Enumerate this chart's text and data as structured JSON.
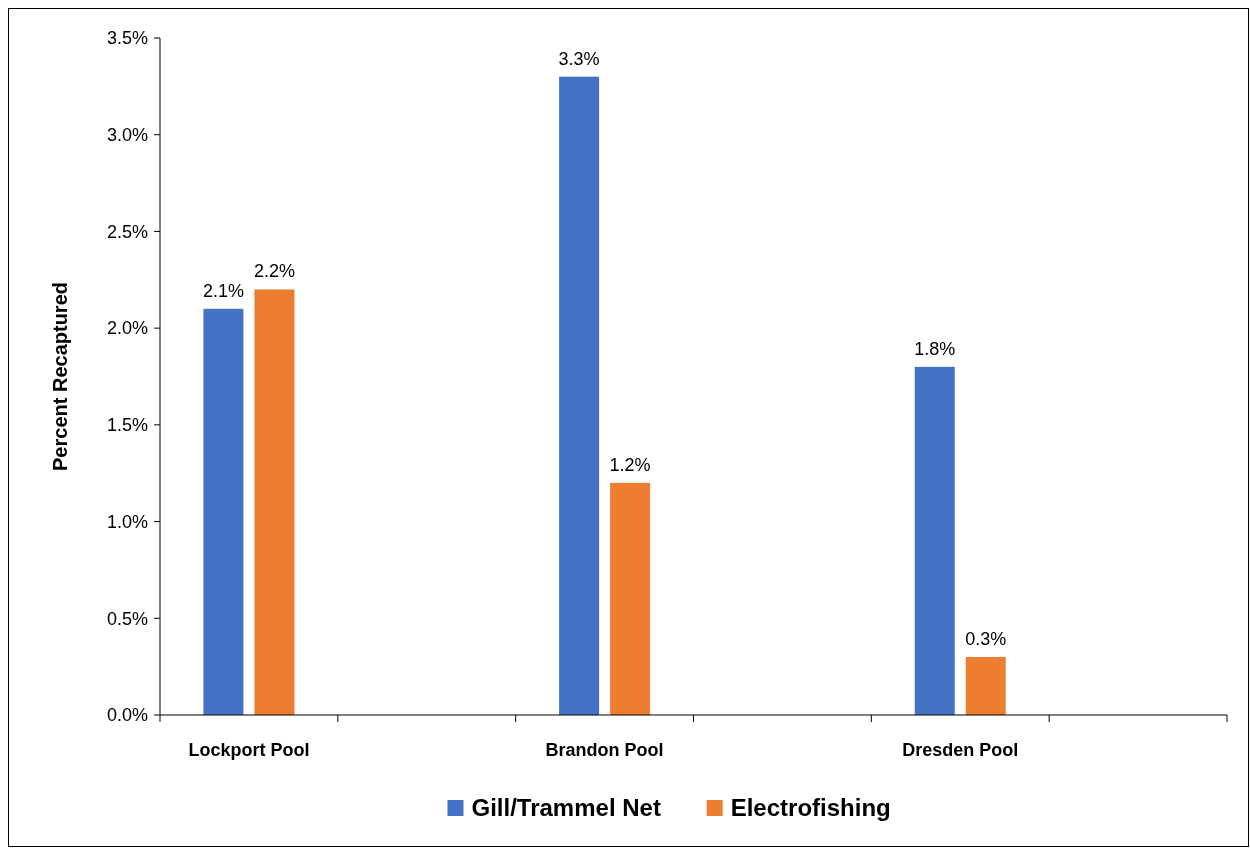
{
  "chart_data": {
    "type": "bar",
    "ylabel": "Percent Recaptured",
    "categories": [
      "Lockport Pool",
      null,
      "Brandon Pool",
      null,
      "Dresden Pool",
      null
    ],
    "series": [
      {
        "name": "Gill/Trammel Net",
        "color": "#4472c4",
        "values": [
          2.1,
          null,
          3.3,
          null,
          1.8,
          null
        ],
        "value_labels": [
          "2.1%",
          null,
          "3.3%",
          null,
          "1.8%",
          null
        ]
      },
      {
        "name": "Electrofishing",
        "color": "#ed7d31",
        "values": [
          2.2,
          null,
          1.2,
          null,
          0.3,
          null
        ],
        "value_labels": [
          "2.2%",
          null,
          "1.2%",
          null,
          "0.3%",
          null
        ]
      }
    ],
    "ylim": [
      0,
      3.5
    ],
    "yticks": [
      {
        "value": 0,
        "label": "0.0%"
      },
      {
        "value": 0.5,
        "label": "0.5%"
      },
      {
        "value": 1,
        "label": "1.0%"
      },
      {
        "value": 1.5,
        "label": "1.5%"
      },
      {
        "value": 2,
        "label": "2.0%"
      },
      {
        "value": 2.5,
        "label": "2.5%"
      },
      {
        "value": 3,
        "label": "3.0%"
      },
      {
        "value": 3.5,
        "label": "3.5%"
      }
    ],
    "grid": false,
    "legend": "bottom"
  }
}
